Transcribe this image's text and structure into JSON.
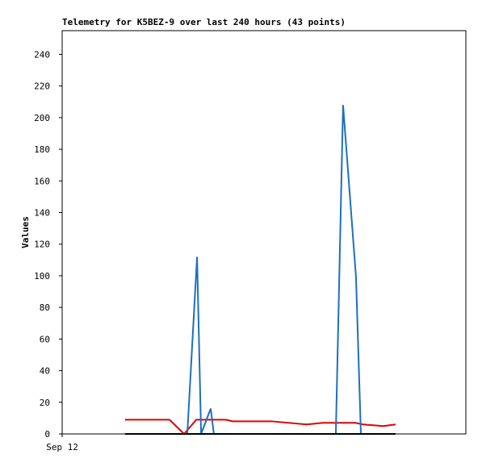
{
  "chart_data": {
    "type": "line",
    "title": "Telemetry for K5BEZ-9 over last 240 hours (43 points)",
    "y_label": "Values",
    "xlim": [
      0,
      240
    ],
    "xticks": [
      {
        "value": 0,
        "label": "Sep 12"
      }
    ],
    "ylim": [
      0,
      255
    ],
    "yticks": [
      0,
      20,
      40,
      60,
      80,
      100,
      120,
      140,
      160,
      180,
      200,
      220,
      240
    ],
    "series": [
      {
        "color": "#e00000",
        "x": [
          37.4,
          63.8,
          72.5,
          79.7,
          88.8,
          97.4,
          101.3,
          124.3,
          145.4,
          155.0,
          174.2,
          179.0,
          191.0,
          198.2
        ],
        "values": [
          9,
          9,
          0,
          9,
          9,
          9,
          8,
          8,
          6,
          7,
          7,
          6,
          5,
          6
        ]
      },
      {
        "color": "#1f6fbf",
        "x": [
          37.4,
          74.4,
          80.2,
          82.6,
          88.3,
          90.2,
          162.7,
          167.0,
          174.7,
          177.6,
          198.2
        ],
        "values": [
          0,
          0,
          112,
          0,
          16,
          0,
          0,
          208,
          99,
          0,
          0
        ]
      },
      {
        "color": "#000000",
        "x": [
          37.4,
          198.2
        ],
        "values": [
          0,
          0
        ]
      }
    ]
  }
}
